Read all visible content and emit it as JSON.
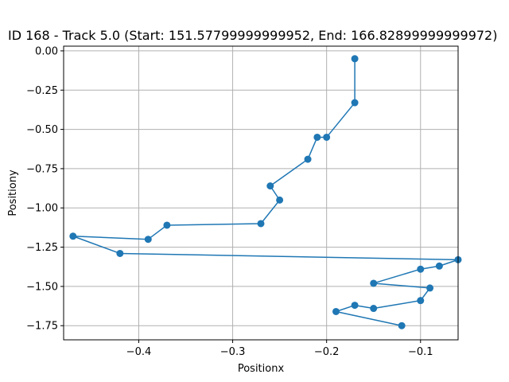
{
  "chart_data": {
    "type": "line",
    "title": "ID 168 - Track 5.0 (Start: 151.57799999999952, End: 166.82899999999972)",
    "xlabel": "Positionx",
    "ylabel": "Positiony",
    "xlim": [
      -0.48,
      -0.06
    ],
    "ylim": [
      -1.84,
      0.03
    ],
    "xticks": [
      -0.4,
      -0.3,
      -0.2,
      -0.1
    ],
    "xtick_labels": [
      "−0.4",
      "−0.3",
      "−0.2",
      "−0.1"
    ],
    "yticks": [
      0.0,
      -0.25,
      -0.5,
      -0.75,
      -1.0,
      -1.25,
      -1.5,
      -1.75
    ],
    "ytick_labels": [
      "0.00",
      "−0.25",
      "−0.50",
      "−0.75",
      "−1.00",
      "−1.25",
      "−1.50",
      "−1.75"
    ],
    "grid": true,
    "marker": "circle",
    "series_color": "#1f77b4",
    "series": [
      {
        "x": [
          -0.17,
          -0.17,
          -0.2,
          -0.21,
          -0.22,
          -0.26,
          -0.25,
          -0.27,
          -0.37,
          -0.39,
          -0.47,
          -0.42,
          -0.06,
          -0.08,
          -0.1,
          -0.15,
          -0.09,
          -0.1,
          -0.15,
          -0.17,
          -0.19,
          -0.12
        ],
        "y": [
          -0.05,
          -0.33,
          -0.55,
          -0.55,
          -0.69,
          -0.86,
          -0.95,
          -1.1,
          -1.11,
          -1.2,
          -1.18,
          -1.29,
          -1.33,
          -1.37,
          -1.39,
          -1.48,
          -1.51,
          -1.59,
          -1.64,
          -1.62,
          -1.66,
          -1.75
        ]
      }
    ]
  }
}
